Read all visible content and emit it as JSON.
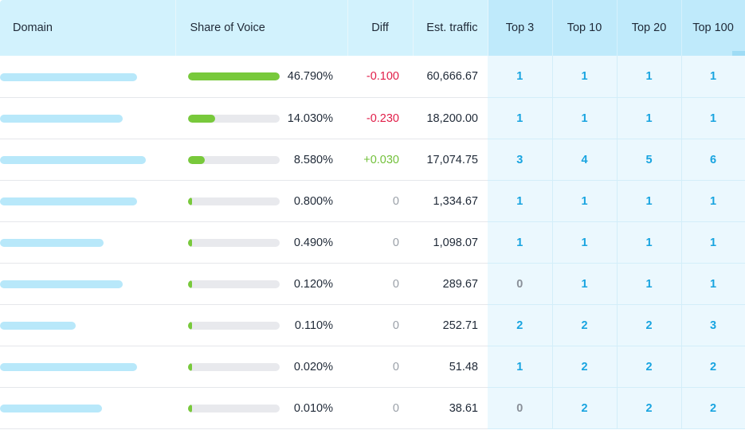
{
  "columns": {
    "domain": "Domain",
    "share_of_voice": "Share of Voice",
    "diff": "Diff",
    "est_traffic": "Est. traffic",
    "top3": "Top 3",
    "top10": "Top 10",
    "top20": "Top 20",
    "top100": "Top 100"
  },
  "colors": {
    "header_bg": "#d2f2fd",
    "top_header_bg": "#bfeafb",
    "top_cell_bg": "#ebf8fe",
    "sov_bar": "#78c93b",
    "domain_placeholder_bar": "#b8e8fa",
    "negative": "#e11d48",
    "positive": "#72c03a",
    "link_number": "#18a4e0"
  },
  "rows": [
    {
      "domain_bar_fraction": 0.78,
      "sov_fraction": 0.4679,
      "sov": "46.790%",
      "diff": "-0.100",
      "diff_sign": "neg",
      "traffic": "60,666.67",
      "top3": "1",
      "top10": "1",
      "top20": "1",
      "top100": "1"
    },
    {
      "domain_bar_fraction": 0.7,
      "sov_fraction": 0.1403,
      "sov": "14.030%",
      "diff": "-0.230",
      "diff_sign": "neg",
      "traffic": "18,200.00",
      "top3": "1",
      "top10": "1",
      "top20": "1",
      "top100": "1"
    },
    {
      "domain_bar_fraction": 0.83,
      "sov_fraction": 0.0858,
      "sov": "8.580%",
      "diff": "+0.030",
      "diff_sign": "pos",
      "traffic": "17,074.75",
      "top3": "3",
      "top10": "4",
      "top20": "5",
      "top100": "6"
    },
    {
      "domain_bar_fraction": 0.78,
      "sov_fraction": 0.008,
      "sov": "0.800%",
      "diff": "0",
      "diff_sign": "zero",
      "traffic": "1,334.67",
      "top3": "1",
      "top10": "1",
      "top20": "1",
      "top100": "1"
    },
    {
      "domain_bar_fraction": 0.59,
      "sov_fraction": 0.0049,
      "sov": "0.490%",
      "diff": "0",
      "diff_sign": "zero",
      "traffic": "1,098.07",
      "top3": "1",
      "top10": "1",
      "top20": "1",
      "top100": "1"
    },
    {
      "domain_bar_fraction": 0.7,
      "sov_fraction": 0.0012,
      "sov": "0.120%",
      "diff": "0",
      "diff_sign": "zero",
      "traffic": "289.67",
      "top3": "0",
      "top10": "1",
      "top20": "1",
      "top100": "1"
    },
    {
      "domain_bar_fraction": 0.43,
      "sov_fraction": 0.0011,
      "sov": "0.110%",
      "diff": "0",
      "diff_sign": "zero",
      "traffic": "252.71",
      "top3": "2",
      "top10": "2",
      "top20": "2",
      "top100": "3"
    },
    {
      "domain_bar_fraction": 0.78,
      "sov_fraction": 0.0002,
      "sov": "0.020%",
      "diff": "0",
      "diff_sign": "zero",
      "traffic": "51.48",
      "top3": "1",
      "top10": "2",
      "top20": "2",
      "top100": "2"
    },
    {
      "domain_bar_fraction": 0.58,
      "sov_fraction": 0.0001,
      "sov": "0.010%",
      "diff": "0",
      "diff_sign": "zero",
      "traffic": "38.61",
      "top3": "0",
      "top10": "2",
      "top20": "2",
      "top100": "2"
    }
  ]
}
